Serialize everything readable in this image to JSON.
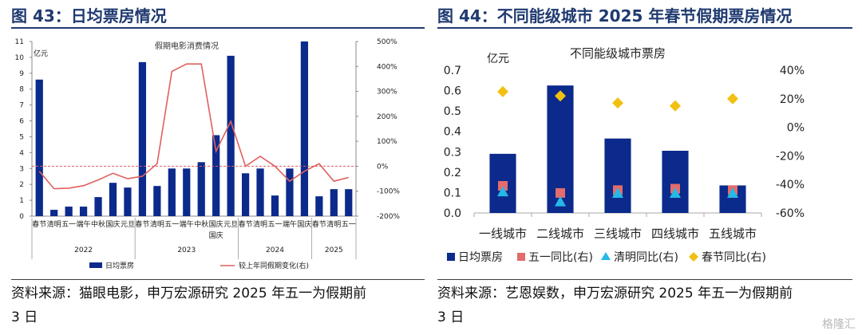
{
  "left": {
    "heading": "图 43：日均票房情况",
    "source_line1": "资料来源：猫眼电影，申万宏源研究  2025 年五一为假期前",
    "source_line2": "3 日"
  },
  "right": {
    "heading": "图 44：不同能级城市 2025 年春节假期票房情况",
    "source_line1": "资料来源：艺恩娱数，申万宏源研究  2025 年五一为假期前",
    "source_line2": "3 日"
  },
  "watermark": "格隆汇",
  "colors": {
    "navy": "#0b2a8c",
    "red_line": "#e06060",
    "heading": "#1f3a70",
    "red_marker": "#e36c6c",
    "cyan_marker": "#26b8e6",
    "gold_marker": "#f2c012"
  },
  "chart_data": [
    {
      "type": "bar",
      "title": "假期电影消费情况",
      "y_unit_label": "亿元",
      "categories": [
        "春节",
        "清明",
        "五一",
        "端午",
        "中秋",
        "国庆",
        "元旦",
        "春节",
        "清明",
        "五一",
        "端午",
        "中秋",
        "国庆",
        "元旦",
        "春节",
        "清明",
        "五一",
        "端午",
        "国庆",
        "春节",
        "清明",
        "五一"
      ],
      "category_display": [
        "春节",
        "清明",
        "五一",
        "端午",
        "中秋",
        "国庆",
        "元旦",
        "春节",
        "清明",
        "五一",
        "端午",
        "中秋",
        "国庆",
        "元旦",
        "春节",
        "清明",
        "五一",
        "端午",
        "国庆",
        "春节",
        "清明",
        "五一"
      ],
      "category_subline": {
        "index": 12,
        "text": "国庆"
      },
      "year_groups": [
        {
          "label": "2022",
          "start": 0,
          "end": 6
        },
        {
          "label": "2023",
          "start": 7,
          "end": 13
        },
        {
          "label": "2024",
          "start": 14,
          "end": 18
        },
        {
          "label": "2025",
          "start": 19,
          "end": 21
        }
      ],
      "series": [
        {
          "name": "日均票房",
          "kind": "bar",
          "axis": "left",
          "values": [
            8.6,
            0.4,
            0.6,
            0.6,
            1.2,
            2.1,
            1.8,
            9.7,
            1.9,
            3.0,
            3.0,
            3.4,
            5.1,
            10.1,
            2.7,
            3.0,
            1.3,
            3.0,
            11.0,
            1.25,
            1.7,
            1.7
          ]
        },
        {
          "name": "较上年同假期变化(右)",
          "kind": "line",
          "axis": "right",
          "values": [
            -20,
            -90,
            -88,
            -78,
            -55,
            -28,
            -50,
            -40,
            10,
            380,
            410,
            410,
            60,
            180,
            0,
            40,
            0,
            -60,
            -20,
            10,
            -60,
            -45
          ]
        }
      ],
      "reference_line": {
        "axis": "right",
        "value": 0,
        "style": "dashed"
      },
      "y_left": {
        "min": 0,
        "max": 11,
        "ticks": [
          0,
          1,
          2,
          3,
          4,
          5,
          6,
          7,
          8,
          9,
          10,
          11
        ]
      },
      "y_right": {
        "min": -200,
        "max": 500,
        "ticks": [
          "-200%",
          "-100%",
          "0%",
          "100%",
          "200%",
          "300%",
          "400%",
          "500%"
        ]
      },
      "legend": {
        "position": "bottom",
        "entries": [
          "日均票房",
          "较上年同假期变化(右)"
        ]
      }
    },
    {
      "type": "bar",
      "title": "不同能级城市票房",
      "y_unit_label": "亿元",
      "categories": [
        "一线城市",
        "二线城市",
        "三线城市",
        "四线城市",
        "五线城市"
      ],
      "series": [
        {
          "name": "日均票房",
          "kind": "bar",
          "axis": "left",
          "values": [
            0.29,
            0.625,
            0.365,
            0.305,
            0.135
          ]
        },
        {
          "name": "五一同比(右)",
          "kind": "marker",
          "marker": "square",
          "axis": "right",
          "values": [
            -41,
            -46,
            -44,
            -43,
            -44
          ]
        },
        {
          "name": "清明同比(右)",
          "kind": "marker",
          "marker": "triangle",
          "axis": "right",
          "values": [
            -45,
            -52,
            -46,
            -46,
            -46
          ]
        },
        {
          "name": "春节同比(右)",
          "kind": "marker",
          "marker": "diamond",
          "axis": "right",
          "values": [
            25,
            22,
            17,
            15,
            20
          ]
        }
      ],
      "y_left": {
        "min": 0,
        "max": 0.7,
        "ticks": [
          "0.0",
          "0.1",
          "0.2",
          "0.3",
          "0.4",
          "0.5",
          "0.6",
          "0.7"
        ]
      },
      "y_right": {
        "min": -60,
        "max": 40,
        "ticks": [
          "-60%",
          "-40%",
          "-20%",
          "0%",
          "20%",
          "40%"
        ]
      },
      "legend": {
        "position": "bottom",
        "entries": [
          "日均票房",
          "五一同比(右)",
          "清明同比(右)",
          "春节同比(右)"
        ]
      }
    }
  ]
}
